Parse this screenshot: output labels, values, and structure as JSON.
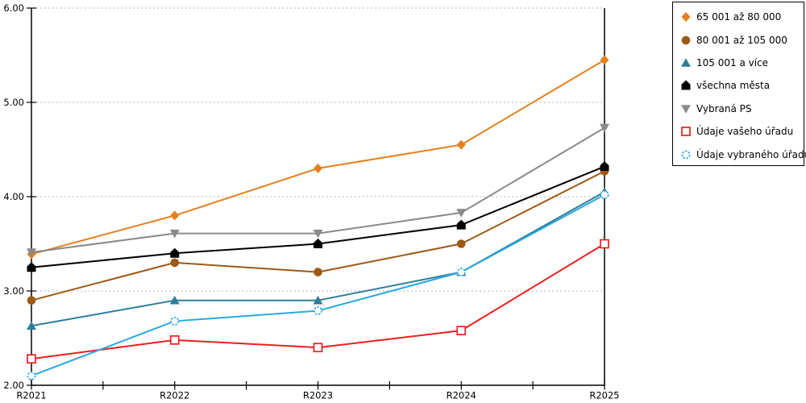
{
  "chart_data": {
    "type": "line",
    "title": "",
    "xlabel": "",
    "ylabel": "",
    "categories": [
      "R2021",
      "R2022",
      "R2023",
      "R2024",
      "R2025"
    ],
    "series": [
      {
        "name": "65 001 až 80 000",
        "marker": "diamond",
        "color": "#E5801F",
        "values": [
          3.39,
          3.8,
          4.3,
          4.55,
          5.45
        ]
      },
      {
        "name": "80 001 až 105 000",
        "marker": "circle",
        "color": "#9D5914",
        "values": [
          2.9,
          3.3,
          3.2,
          3.5,
          4.27
        ]
      },
      {
        "name": "105 001 a více",
        "marker": "triangle-up",
        "color": "#2E7D9B",
        "values": [
          2.63,
          2.9,
          2.9,
          3.2,
          4.05
        ]
      },
      {
        "name": "všechna města",
        "marker": "pentagon",
        "color": "#000000",
        "values": [
          3.25,
          3.4,
          3.5,
          3.7,
          4.32
        ]
      },
      {
        "name": "Vybraná PS",
        "marker": "triangle-down",
        "color": "#8A8A8A",
        "values": [
          3.41,
          3.61,
          3.61,
          3.83,
          4.73
        ]
      },
      {
        "name": "Údaje vašeho úřadu",
        "marker": "square-open",
        "color": "#F01D1D",
        "values": [
          2.28,
          2.48,
          2.4,
          2.58,
          3.5
        ]
      },
      {
        "name": "Údaje vybraného úřadu",
        "marker": "circle-open",
        "color": "#29A9E1",
        "values": [
          2.1,
          2.68,
          2.79,
          3.2,
          4.02
        ]
      }
    ],
    "ylim": [
      2.0,
      6.0
    ],
    "ytick_step": 1.0,
    "ytick_labels": [
      "2.00",
      "3.00",
      "4.00",
      "5.00",
      "6.00"
    ],
    "grid": "horizontal-dashed",
    "legend_position": "top-right",
    "colors": {
      "grid": "#B3B3B3",
      "axis": "#000000",
      "background": "#FFFFFF",
      "legend_border": "#000000"
    }
  }
}
